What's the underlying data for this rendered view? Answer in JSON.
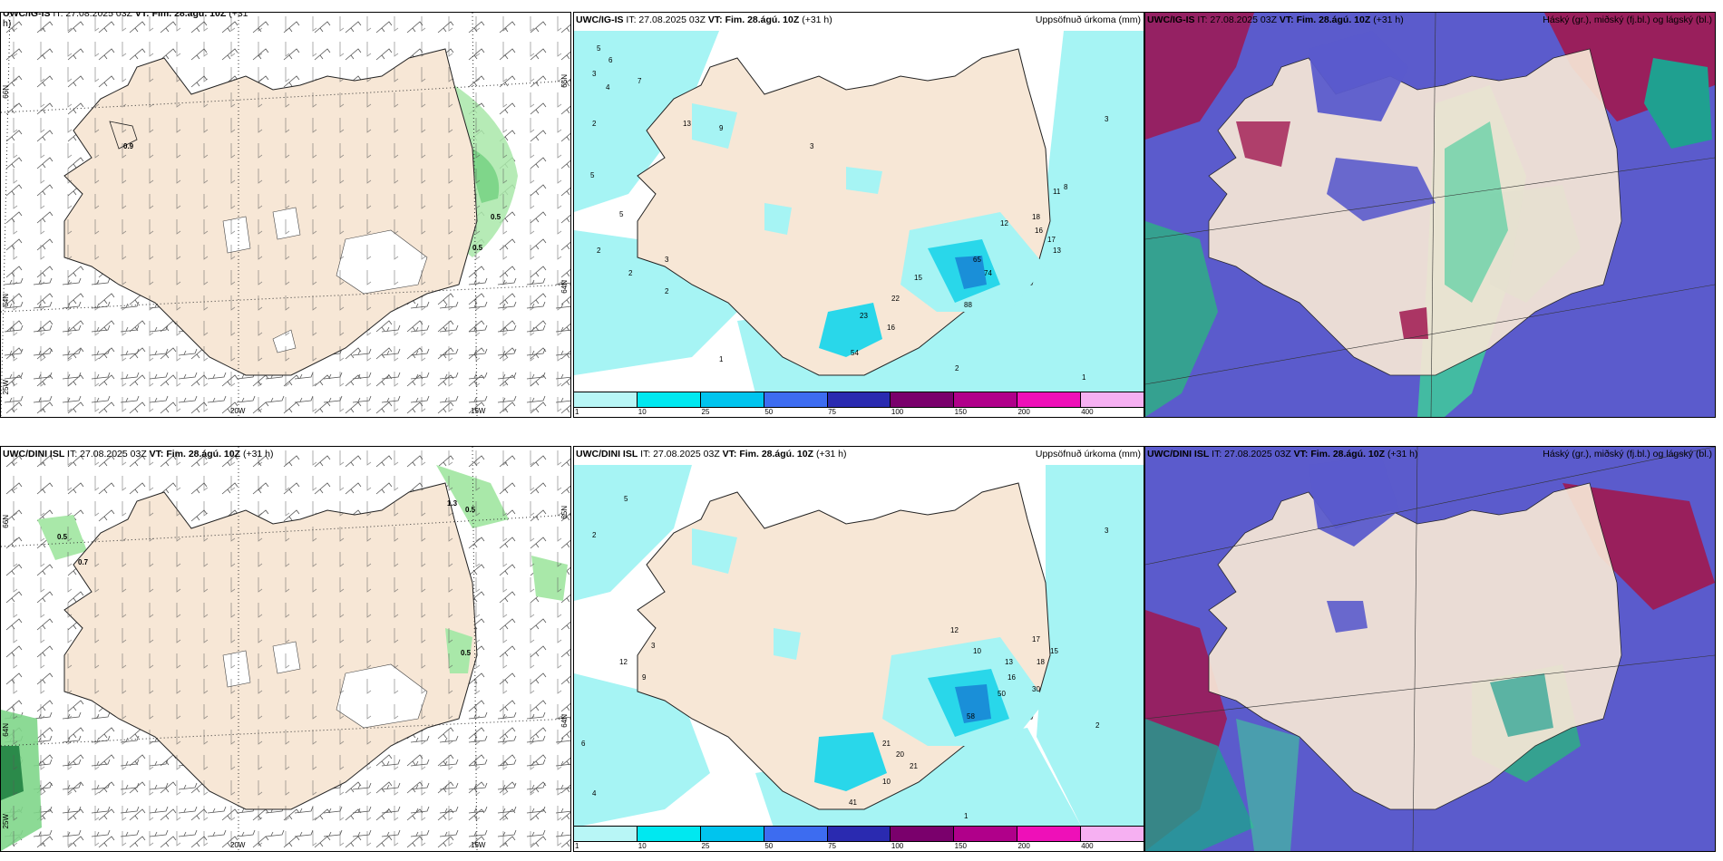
{
  "panels": {
    "top_left": {
      "title_model": "UWC/IG-IS",
      "title_rest": " IT: 27.08.2025 03Z ",
      "vt_label": "VT: Fim. 28.ágú. 10Z",
      "lead": " (+31",
      "lead_cont": "h)",
      "lat_left": [
        "66N",
        "64N",
        "25W"
      ],
      "lat_right": [
        "65N",
        "64N"
      ],
      "lon_bottom": [
        "20W",
        "15W"
      ],
      "contour_labels": [
        "0.9",
        "0.5",
        "0.5"
      ]
    },
    "top_mid": {
      "title_model": "UWC/IG-IS",
      "title_rest": " IT: 27.08.2025 03Z ",
      "vt_label": "VT: Fim. 28.ágú. 10Z",
      "lead": " (+31 h)",
      "right_title": "Uppsöfnuð úrkoma (mm)",
      "values": [
        "5",
        "6",
        "3",
        "4",
        "7",
        "13",
        "2",
        "9",
        "5",
        "5",
        "2",
        "3",
        "2",
        "2",
        "1",
        "3",
        "23",
        "16",
        "22",
        "15",
        "54",
        "12",
        "18",
        "16",
        "17",
        "13",
        "8",
        "11",
        "65",
        "74",
        "88",
        "3",
        "2",
        "1"
      ]
    },
    "top_right": {
      "title_model": "UWC/IG-IS",
      "title_rest": " IT: 27.08.2025 03Z ",
      "vt_label": "VT: Fim. 28.ágú. 10Z",
      "lead": " (+31 h)",
      "right_title": "Háský (gr.), miðský (fj.bl.) og lágský (bl.)"
    },
    "bot_left": {
      "title_model": "UWC/DINI ISL",
      "title_rest": " IT: 27.08.2025 03Z ",
      "vt_label": "VT: Fim. 28.ágú. 10Z",
      "lead": " (+31 h)",
      "lat_left": [
        "66N",
        "64N",
        "25W"
      ],
      "lat_right": [
        "65N",
        "64N"
      ],
      "lon_bottom": [
        "20W",
        "15W"
      ],
      "contour_labels": [
        "0.5",
        "0.7",
        "1.3",
        "0.5",
        "0.5"
      ]
    },
    "bot_mid": {
      "title_model": "UWC/DINI ISL",
      "title_rest": " IT: 27.08.2025 03Z ",
      "vt_label": "VT: Fim. 28.ágú. 10Z",
      "lead": " (+31 h)",
      "right_title": "Uppsöfnuð úrkoma (mm)",
      "values": [
        "5",
        "2",
        "6",
        "12",
        "9",
        "3",
        "4",
        "21",
        "20",
        "21",
        "10",
        "12",
        "10",
        "13",
        "16",
        "18",
        "41",
        "50",
        "58",
        "30",
        "17",
        "15",
        "3",
        "2",
        "1"
      ]
    },
    "bot_right": {
      "title_model": "UWC/DINI ISL",
      "title_rest": " IT: 27.08.2025 03Z ",
      "vt_label": "VT: Fim. 28.ágú. 10Z",
      "lead": " (+31 h)",
      "right_title": "Háský (gr.), miðský (fj.bl.) og lágský (bl.)"
    }
  },
  "colorbar": {
    "ticks": [
      "1",
      "10",
      "25",
      "50",
      "75",
      "100",
      "150",
      "200",
      "400"
    ],
    "colors": [
      "#b8f6f6",
      "#00e8f0",
      "#00c4ee",
      "#3d6cf0",
      "#2a2ab0",
      "#7a006c",
      "#b0008a",
      "#ee10b8",
      "#f6b0f2"
    ]
  },
  "colors": {
    "land": "#f7e7d6",
    "wind_precip": "#a9e8a9",
    "precip_light": "#a6f4f4",
    "precip_mid": "#29d7ea",
    "precip_heavy": "#1a8fd8",
    "cloud_high": "#3fcc9a",
    "cloud_mid": "#a01850",
    "cloud_low": "#5b5bcc"
  }
}
